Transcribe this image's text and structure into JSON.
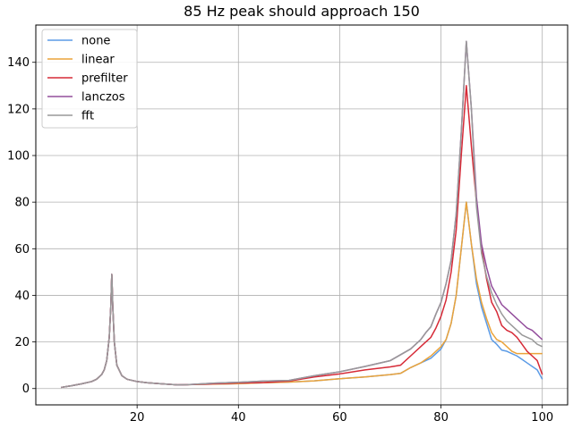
{
  "chart_data": {
    "type": "line",
    "title": "85 Hz peak should approach 150",
    "xlabel": "",
    "ylabel": "",
    "xlim": [
      0,
      105
    ],
    "ylim": [
      -7,
      156
    ],
    "xticks": [
      20,
      40,
      60,
      80,
      100
    ],
    "yticks": [
      0,
      20,
      40,
      60,
      80,
      100,
      120,
      140
    ],
    "grid": true,
    "legend_position": "top-left",
    "colors": {
      "none": "#5b9be6",
      "linear": "#eba33a",
      "prefilter": "#d62a37",
      "lanczos": "#934e9c",
      "fft": "#999999"
    },
    "series": [
      {
        "name": "none",
        "x": [
          5,
          7,
          9,
          11,
          12,
          13,
          13.5,
          14,
          14.5,
          14.8,
          15,
          15.2,
          15.5,
          16,
          17,
          18,
          20,
          22,
          25,
          28,
          30,
          35,
          40,
          45,
          50,
          55,
          60,
          65,
          70,
          72,
          74,
          76,
          77,
          78,
          79,
          80,
          81,
          82,
          83,
          84,
          85,
          86,
          87,
          88,
          89,
          90,
          91,
          92,
          93,
          94,
          95,
          96,
          97,
          98,
          99,
          100
        ],
        "y": [
          0.5,
          1.2,
          2,
          3,
          4,
          6,
          8,
          12,
          22,
          35,
          49,
          35,
          20,
          10,
          5.5,
          4,
          3,
          2.5,
          2,
          1.6,
          1.7,
          1.9,
          2.1,
          2.5,
          2.8,
          3.3,
          4.2,
          5,
          6,
          6.5,
          9,
          11,
          12,
          13,
          15,
          17,
          21,
          28,
          40,
          60,
          80,
          62,
          45,
          35,
          28,
          21,
          19,
          16.5,
          16,
          15,
          14,
          12.5,
          11,
          9.5,
          8,
          4
        ]
      },
      {
        "name": "linear",
        "x": [
          5,
          7,
          9,
          11,
          12,
          13,
          13.5,
          14,
          14.5,
          14.8,
          15,
          15.2,
          15.5,
          16,
          17,
          18,
          20,
          22,
          25,
          28,
          30,
          35,
          40,
          45,
          50,
          55,
          60,
          65,
          70,
          72,
          74,
          76,
          77,
          78,
          79,
          80,
          81,
          82,
          83,
          84,
          85,
          86,
          87,
          88,
          89,
          90,
          91,
          92,
          93,
          94,
          95,
          96,
          97,
          98,
          99,
          100
        ],
        "y": [
          0.5,
          1.2,
          2,
          3,
          4,
          6,
          8,
          12,
          22,
          35,
          49,
          35,
          20,
          10,
          5.5,
          4,
          3,
          2.5,
          2,
          1.6,
          1.7,
          1.9,
          2.1,
          2.5,
          2.8,
          3.3,
          4.2,
          5,
          6,
          6.5,
          9,
          11,
          12.5,
          14,
          16,
          18,
          21,
          28,
          40,
          60,
          80,
          62,
          47,
          37,
          30,
          24,
          21,
          20,
          18,
          16,
          15,
          15,
          15,
          15,
          15,
          15
        ]
      },
      {
        "name": "prefilter",
        "x": [
          5,
          7,
          9,
          11,
          12,
          13,
          13.5,
          14,
          14.5,
          14.8,
          15,
          15.2,
          15.5,
          16,
          17,
          18,
          20,
          22,
          25,
          28,
          30,
          35,
          40,
          45,
          50,
          55,
          60,
          65,
          70,
          72,
          74,
          76,
          77,
          78,
          79,
          80,
          81,
          82,
          83,
          84,
          85,
          86,
          87,
          88,
          89,
          90,
          91,
          92,
          93,
          94,
          95,
          96,
          97,
          98,
          99,
          100
        ],
        "y": [
          0.5,
          1.2,
          2,
          3,
          4,
          6,
          8,
          12,
          22,
          35,
          49,
          35,
          20,
          10,
          5.5,
          4,
          3,
          2.5,
          2,
          1.6,
          1.7,
          2,
          2.4,
          2.6,
          3.2,
          5,
          6.3,
          8,
          9.3,
          10,
          14,
          18,
          20,
          22,
          26,
          31,
          38,
          50,
          68,
          100,
          130,
          104,
          80,
          60,
          47,
          37,
          33,
          27,
          25,
          24,
          22,
          19,
          16,
          14,
          12,
          6
        ]
      },
      {
        "name": "lanczos",
        "x": [
          5,
          7,
          9,
          11,
          12,
          13,
          13.5,
          14,
          14.5,
          14.8,
          15,
          15.2,
          15.5,
          16,
          17,
          18,
          20,
          22,
          25,
          28,
          30,
          35,
          40,
          45,
          50,
          55,
          60,
          65,
          70,
          72,
          74,
          76,
          77,
          78,
          79,
          80,
          81,
          82,
          83,
          84,
          85,
          86,
          87,
          88,
          89,
          90,
          91,
          92,
          93,
          94,
          95,
          96,
          97,
          98,
          99,
          100
        ],
        "y": [
          0.5,
          1.2,
          2,
          3,
          4,
          6,
          8,
          12,
          22,
          35,
          49,
          35,
          20,
          10,
          5.5,
          4,
          3,
          2.5,
          2,
          1.6,
          1.7,
          2.3,
          2.7,
          3.2,
          3.5,
          5.5,
          7.2,
          9.5,
          12,
          14.5,
          17,
          21,
          24,
          26.5,
          32,
          37,
          45,
          55,
          75,
          110,
          149,
          120,
          82,
          62,
          52,
          44,
          40,
          36,
          34,
          32,
          30,
          28,
          26,
          25,
          23,
          21
        ]
      },
      {
        "name": "fft",
        "x": [
          5,
          7,
          9,
          11,
          12,
          13,
          13.5,
          14,
          14.5,
          14.8,
          15,
          15.2,
          15.5,
          16,
          17,
          18,
          20,
          22,
          25,
          28,
          30,
          35,
          40,
          45,
          50,
          55,
          60,
          65,
          70,
          72,
          74,
          76,
          77,
          78,
          79,
          80,
          81,
          82,
          83,
          84,
          85,
          86,
          87,
          88,
          89,
          90,
          91,
          92,
          93,
          94,
          95,
          96,
          97,
          98,
          99,
          100
        ],
        "y": [
          0.5,
          1.2,
          2,
          3,
          4,
          6,
          8,
          12,
          22,
          35,
          49,
          35,
          20,
          10,
          5.5,
          4,
          3,
          2.5,
          2,
          1.6,
          1.7,
          2.3,
          2.7,
          3.2,
          3.5,
          5.5,
          7.2,
          9.5,
          12,
          14.5,
          17,
          21,
          24,
          26.5,
          32,
          37,
          45,
          55,
          75,
          110,
          149,
          120,
          78,
          58,
          48,
          41,
          36,
          32,
          29,
          27,
          25,
          23,
          22,
          21,
          19,
          18
        ]
      }
    ]
  }
}
